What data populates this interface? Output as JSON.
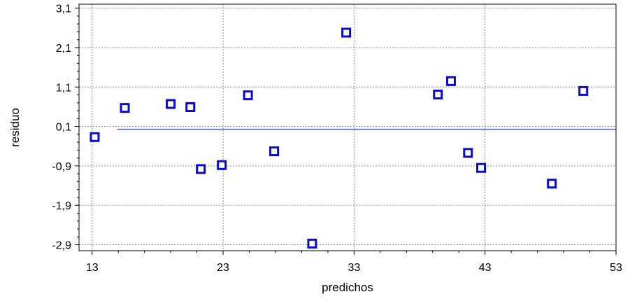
{
  "chart_data": {
    "type": "scatter",
    "xlabel": "predichos",
    "ylabel": "residuo",
    "xlim": [
      12,
      53
    ],
    "ylim": [
      -3.05,
      3.2
    ],
    "x_ticks": [
      "13",
      "23",
      "33",
      "43",
      "53"
    ],
    "x_tick_values": [
      13,
      23,
      33,
      43,
      53
    ],
    "y_ticks": [
      "3,1",
      "2,1",
      "1,1",
      "0,1",
      "-0,9",
      "-1,9",
      "-2,9"
    ],
    "y_tick_values": [
      3.1,
      2.1,
      1.1,
      0.1,
      -0.9,
      -1.9,
      -2.9
    ],
    "grid": true,
    "reference_line": {
      "y": 0.03,
      "x_start": 13,
      "x_end": 53,
      "color": "#2b3fd6"
    },
    "marker_color": "#0a0ad6",
    "series": [
      {
        "points": [
          {
            "x": 13.2,
            "y": -0.17
          },
          {
            "x": 15.5,
            "y": 0.57
          },
          {
            "x": 19.0,
            "y": 0.67
          },
          {
            "x": 20.5,
            "y": 0.59
          },
          {
            "x": 21.3,
            "y": -0.98
          },
          {
            "x": 22.9,
            "y": -0.88
          },
          {
            "x": 24.9,
            "y": 0.89
          },
          {
            "x": 26.9,
            "y": -0.53
          },
          {
            "x": 29.8,
            "y": -2.87
          },
          {
            "x": 32.4,
            "y": 2.48
          },
          {
            "x": 39.4,
            "y": 0.91
          },
          {
            "x": 40.4,
            "y": 1.25
          },
          {
            "x": 41.7,
            "y": -0.57
          },
          {
            "x": 42.7,
            "y": -0.95
          },
          {
            "x": 48.1,
            "y": -1.35
          },
          {
            "x": 50.5,
            "y": 1.0
          }
        ]
      }
    ]
  }
}
